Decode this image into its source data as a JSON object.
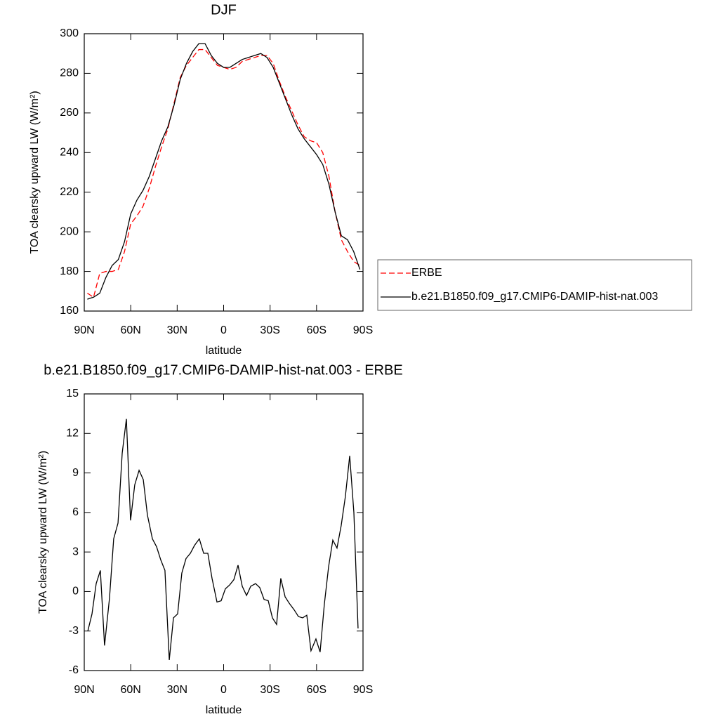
{
  "chart_data": [
    {
      "type": "line",
      "title": "DJF",
      "x_label": "latitude",
      "y_label": "TOA clearsky upward LW (W/m²)",
      "x": [
        88,
        84,
        80,
        76,
        72,
        68,
        64,
        60,
        56,
        52,
        48,
        44,
        40,
        36,
        32,
        28,
        24,
        20,
        16,
        12,
        8,
        4,
        0,
        -4,
        -8,
        -12,
        -16,
        -20,
        -24,
        -28,
        -32,
        -36,
        -40,
        -44,
        -48,
        -52,
        -56,
        -60,
        -64,
        -68,
        -72,
        -76,
        -80,
        -84,
        -88
      ],
      "series": [
        {
          "name": "ERBE",
          "color": "#ff0000",
          "dash": true,
          "values": [
            169,
            167,
            179,
            180,
            180,
            181,
            190,
            204,
            208,
            213,
            222,
            233,
            243,
            252,
            265,
            278,
            284,
            288,
            292,
            292,
            288,
            284,
            283,
            282,
            283,
            286,
            287,
            288,
            289,
            289,
            285,
            276,
            268,
            261,
            254,
            248,
            246,
            245,
            240,
            228,
            210,
            196,
            190,
            185,
            183
          ]
        },
        {
          "name": "b.e21.B1850.f09_g17.CMIP6-DAMIP-hist-nat.003",
          "color": "#000000",
          "dash": false,
          "values": [
            166,
            167,
            169,
            177,
            183,
            186,
            195,
            209,
            216,
            221,
            228,
            237,
            246,
            253,
            264,
            277,
            285,
            291,
            295,
            295,
            289,
            285,
            283,
            283,
            285,
            287,
            288,
            289,
            290,
            288,
            283,
            275,
            267,
            259,
            252,
            247,
            243,
            239,
            234,
            224,
            210,
            198,
            196,
            190,
            181
          ]
        }
      ],
      "xlim": [
        90,
        -90
      ],
      "xticks": [
        {
          "value": 90,
          "label": "90N"
        },
        {
          "value": 60,
          "label": "60N"
        },
        {
          "value": 30,
          "label": "30N"
        },
        0,
        {
          "value": -30,
          "label": "30S"
        },
        {
          "value": -60,
          "label": "60S"
        },
        {
          "value": -90,
          "label": "90S"
        }
      ],
      "ylim": [
        160,
        300
      ],
      "yticks": [
        160,
        180,
        200,
        220,
        240,
        260,
        280,
        300
      ],
      "legend": "right"
    },
    {
      "type": "line",
      "title": "b.e21.B1850.f09_g17.CMIP6-DAMIP-hist-nat.003 - ERBE",
      "x_label": "latitude",
      "y_label": "TOA clearsky upward LW (W/m²)",
      "x": [
        87.7,
        85,
        82.3,
        79.6,
        76.9,
        73.7,
        71,
        68.2,
        65.5,
        62.8,
        60.1,
        57.4,
        54.6,
        51.9,
        49.2,
        46,
        43.3,
        40.6,
        37.9,
        35.1,
        32.4,
        29.7,
        27,
        24.3,
        21.5,
        18.8,
        15.7,
        12.9,
        10.2,
        7.5,
        4.3,
        1.6,
        -1.1,
        -3.9,
        -6.6,
        -9.3,
        -12,
        -14.8,
        -17.5,
        -20.6,
        -23.3,
        -26.1,
        -28.8,
        -31.5,
        -34.2,
        -36.9,
        -39.7,
        -42.4,
        -45.6,
        -48.3,
        -51,
        -53.7,
        -56.4,
        -59.6,
        -62.3,
        -65,
        -67.8,
        -70.5,
        -73.2,
        -75.9,
        -78.6,
        -81.4,
        -84.1,
        -86.8
      ],
      "series": [
        {
          "color": "#000000",
          "dash": false,
          "values": [
            -3.0,
            -1.7,
            0.6,
            1.6,
            -4.1,
            -0.5,
            4.0,
            5.2,
            10.5,
            13.1,
            5.4,
            8.1,
            9.2,
            8.5,
            5.8,
            4.0,
            3.4,
            2.4,
            1.6,
            -5.2,
            -2.0,
            -1.7,
            1.4,
            2.5,
            2.9,
            3.5,
            4.0,
            2.9,
            2.9,
            1.0,
            -0.8,
            -0.7,
            0.2,
            0.5,
            0.9,
            2.0,
            0.4,
            -0.3,
            0.4,
            0.6,
            0.3,
            -0.6,
            -0.7,
            -2.0,
            -2.5,
            1.0,
            -0.4,
            -0.9,
            -1.4,
            -1.9,
            -2.0,
            -1.8,
            -4.5,
            -3.6,
            -4.6,
            -1.0,
            1.9,
            3.9,
            3.3,
            5.0,
            7.2,
            10.3,
            6.0,
            -2.8
          ]
        }
      ],
      "xlim": [
        90,
        -90
      ],
      "xticks": [
        {
          "value": 90,
          "label": "90N"
        },
        {
          "value": 60,
          "label": "60N"
        },
        {
          "value": 30,
          "label": "30N"
        },
        0,
        {
          "value": -30,
          "label": "30S"
        },
        {
          "value": -60,
          "label": "60S"
        },
        {
          "value": -90,
          "label": "90S"
        }
      ],
      "ylim": [
        -6,
        15
      ],
      "yticks": [
        -6,
        -3,
        0,
        3,
        6,
        9,
        12,
        15
      ]
    }
  ]
}
